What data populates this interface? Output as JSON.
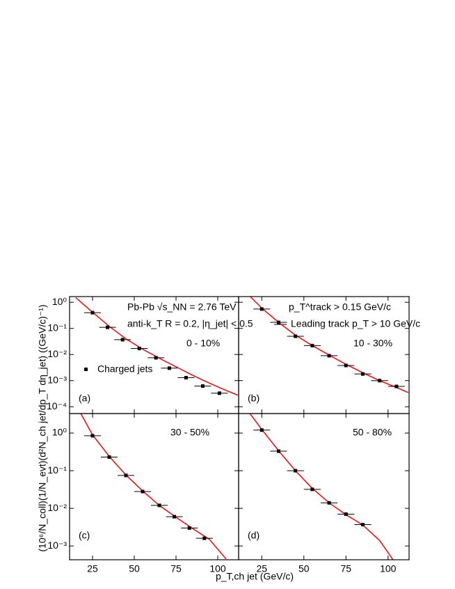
{
  "figure": {
    "xlabel": "p_T,ch jet (GeV/c)",
    "ylabel": "(10⁶/N_coll)(1/N_evt)(d²N_ch jet/dp_T dη_jet) ((GeV/c)⁻¹)"
  },
  "chart_data": [
    {
      "type": "scatter",
      "label": "(a)",
      "centrality": "0 - 10%",
      "annotations": [
        "Pb-Pb √s_NN = 2.76 TeV",
        "anti-k_T R = 0.2, |η_jet| < 0.5"
      ],
      "log_y": true,
      "show_xtick_labels": false,
      "show_ytick_labels": true,
      "xlim": [
        11.25,
        112.5
      ],
      "xticks": [
        25,
        50,
        75,
        100
      ],
      "ylim": [
        5.49e-05,
        1.65
      ],
      "yticks": [
        {
          "value": 1,
          "label": "10⁰"
        },
        {
          "value": 0.1,
          "label": "10⁻¹"
        },
        {
          "value": 0.01,
          "label": "10⁻²"
        },
        {
          "value": 0.001,
          "label": "10⁻³"
        },
        {
          "value": 0.0001,
          "label": "10⁻⁴"
        }
      ],
      "series": [
        {
          "name": "Charged jets",
          "color": "#000000",
          "x": [
            25,
            34,
            43,
            53,
            63,
            71,
            81,
            91,
            101
          ],
          "xerr": [
            5,
            5,
            5,
            5,
            5,
            5,
            5,
            5,
            5
          ],
          "values": [
            0.4,
            0.11,
            0.037,
            0.017,
            0.0075,
            0.003,
            0.0013,
            0.00062,
            0.00033
          ]
        }
      ],
      "fit": {
        "color": "#ff0000",
        "x": [
          15,
          25,
          35,
          45,
          55,
          65,
          75,
          85,
          95,
          105,
          112
        ],
        "values": [
          1.5,
          0.42,
          0.12,
          0.04,
          0.016,
          0.0072,
          0.0034,
          0.0016,
          0.0008,
          0.00042,
          0.00028
        ]
      }
    },
    {
      "type": "scatter",
      "label": "(b)",
      "centrality": "10 - 30%",
      "annotations": [
        "p_T^track > 0.15 GeV/c",
        "Leading track p_T > 10 GeV/c"
      ],
      "log_y": true,
      "show_xtick_labels": false,
      "show_ytick_labels": false,
      "xlim": [
        11.25,
        112.5
      ],
      "xticks": [
        25,
        50,
        75,
        100
      ],
      "ylim": [
        5.49e-05,
        1.65
      ],
      "yticks": [
        1,
        0.1,
        0.01,
        0.001,
        0.0001
      ],
      "series": [
        {
          "color": "#000000",
          "x": [
            25,
            35,
            45,
            55,
            65,
            75,
            85,
            95,
            105
          ],
          "xerr": [
            5,
            5,
            5,
            5,
            5,
            5,
            5,
            5,
            5
          ],
          "values": [
            0.55,
            0.17,
            0.05,
            0.022,
            0.009,
            0.0038,
            0.0018,
            0.001,
            0.0006
          ]
        }
      ],
      "fit": {
        "color": "#ff0000",
        "x": [
          18,
          25,
          35,
          45,
          55,
          65,
          75,
          85,
          95,
          105,
          112
        ],
        "values": [
          1.7,
          0.6,
          0.17,
          0.055,
          0.022,
          0.0095,
          0.0042,
          0.002,
          0.001,
          0.00055,
          0.00035
        ]
      }
    },
    {
      "type": "scatter",
      "label": "(c)",
      "centrality": "30 - 50%",
      "log_y": true,
      "show_xtick_labels": true,
      "show_ytick_labels": true,
      "xlim": [
        11.25,
        112.5
      ],
      "xticks": [
        25,
        50,
        75,
        100
      ],
      "ylim": [
        0.00043,
        3.3
      ],
      "yticks": [
        {
          "value": 1,
          "label": "10⁰"
        },
        {
          "value": 0.1,
          "label": "10⁻¹"
        },
        {
          "value": 0.01,
          "label": "10⁻²"
        },
        {
          "value": 0.001,
          "label": "10⁻³"
        }
      ],
      "series": [
        {
          "color": "#000000",
          "x": [
            25,
            35,
            45,
            55,
            65,
            74,
            83,
            92
          ],
          "xerr": [
            5,
            5,
            5,
            5,
            5,
            5,
            5,
            5
          ],
          "values": [
            0.85,
            0.23,
            0.075,
            0.028,
            0.012,
            0.006,
            0.003,
            0.0016
          ]
        }
      ],
      "fit": {
        "color": "#ff0000",
        "x": [
          18,
          25,
          35,
          45,
          55,
          65,
          75,
          85,
          95,
          105
        ],
        "values": [
          3.3,
          0.9,
          0.24,
          0.077,
          0.029,
          0.012,
          0.0058,
          0.0029,
          0.0015,
          0.00045
        ]
      }
    },
    {
      "type": "scatter",
      "label": "(d)",
      "centrality": "50 - 80%",
      "log_y": true,
      "show_xtick_labels": true,
      "show_ytick_labels": false,
      "xlim": [
        11.25,
        112.5
      ],
      "xticks": [
        25,
        50,
        75,
        100
      ],
      "ylim": [
        0.00043,
        3.3
      ],
      "yticks": [
        1,
        0.1,
        0.01,
        0.001
      ],
      "series": [
        {
          "color": "#000000",
          "x": [
            25,
            35,
            45,
            55,
            65,
            75,
            85
          ],
          "xerr": [
            5,
            5,
            5,
            5,
            5,
            5,
            5
          ],
          "values": [
            1.2,
            0.33,
            0.1,
            0.032,
            0.014,
            0.007,
            0.0037
          ]
        }
      ],
      "fit": {
        "color": "#ff0000",
        "x": [
          18,
          25,
          35,
          45,
          55,
          65,
          75,
          85,
          95,
          103
        ],
        "values": [
          3.3,
          1.25,
          0.34,
          0.1,
          0.034,
          0.014,
          0.0068,
          0.0036,
          0.0014,
          0.00043
        ]
      }
    }
  ]
}
